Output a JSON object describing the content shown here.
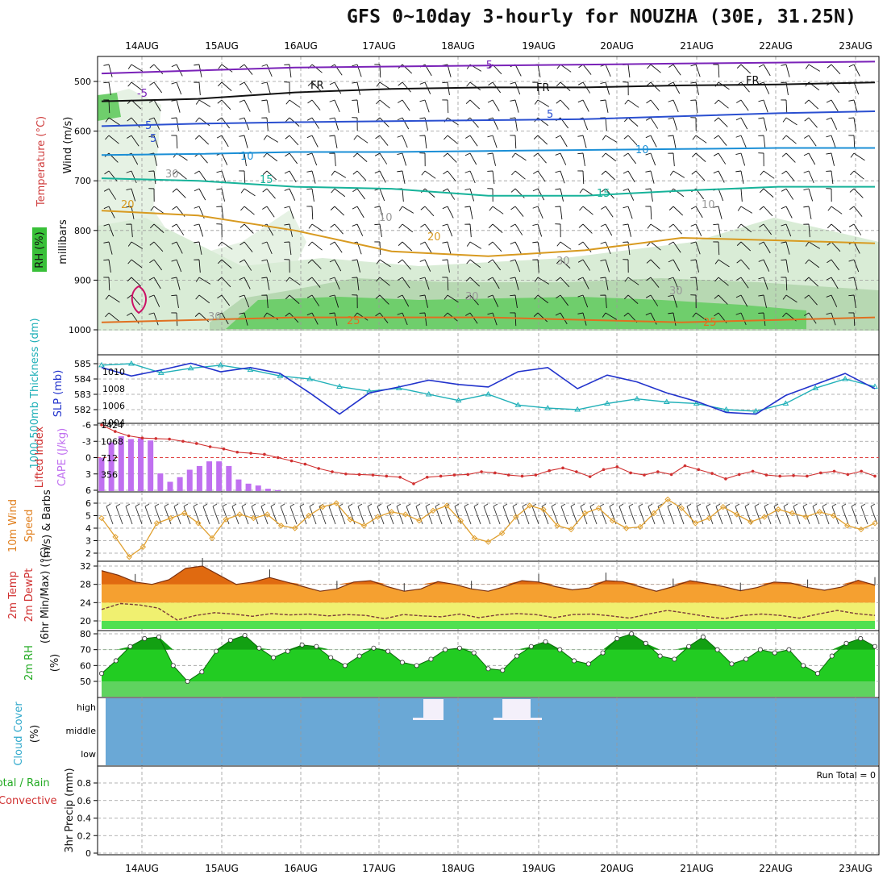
{
  "header": {
    "title": "GFS 0~10day 3-hourly for NOUZHA (30E, 31.25N)"
  },
  "dates": [
    "14AUG",
    "15AUG",
    "16AUG",
    "17AUG",
    "18AUG",
    "19AUG",
    "20AUG",
    "21AUG",
    "22AUG",
    "23AUG"
  ],
  "chart_data": [
    {
      "type": "line",
      "panel": "upper-air",
      "ylabel": "millibars",
      "labels_left": [
        "Wind (m/s)",
        "Temperature (°C)",
        "RH (%)"
      ],
      "y_ticks": [
        500,
        600,
        700,
        800,
        900,
        1000
      ],
      "ylim": [
        1000,
        450
      ],
      "temperature_contours": [
        {
          "name": "-5",
          "color": "#7a22b8",
          "pressure": [
            484,
            478,
            472,
            470,
            468,
            466,
            464,
            462,
            460
          ]
        },
        {
          "name": "FR",
          "color": "#111111",
          "pressure": [
            540,
            535,
            522,
            515,
            512,
            512,
            508,
            506,
            502
          ]
        },
        {
          "name": "5",
          "color": "#2a4fd0",
          "pressure": [
            590,
            585,
            582,
            580,
            578,
            576,
            570,
            564,
            560
          ]
        },
        {
          "name": "10",
          "color": "#1b8fd6",
          "pressure": [
            648,
            646,
            642,
            642,
            640,
            638,
            636,
            634,
            634
          ]
        },
        {
          "name": "15",
          "color": "#17b39a",
          "pressure": [
            695,
            700,
            712,
            716,
            730,
            730,
            720,
            712,
            712
          ]
        },
        {
          "name": "20",
          "color": "#d89a20",
          "pressure": [
            760,
            770,
            800,
            842,
            852,
            840,
            815,
            820,
            826
          ]
        },
        {
          "name": "25",
          "color": "#e07020",
          "pressure": [
            985,
            980,
            975,
            975,
            975,
            980,
            985,
            980,
            975
          ]
        }
      ],
      "contour_labels": [
        "5",
        "-5",
        "FR",
        "FR",
        "FR",
        "-5",
        "5",
        "5",
        "10",
        "10",
        "15",
        "15",
        "20",
        "20",
        "25",
        "25",
        "10",
        "30",
        "30",
        "30",
        "30",
        "10",
        "30"
      ]
    },
    {
      "type": "line",
      "panel": "thickness-slp",
      "labels_left": [
        "1000-500mb Thickness (dm)",
        "SLP (mb)"
      ],
      "left_ticks": [
        582,
        583,
        584,
        585
      ],
      "right_ticks": [
        1004,
        1006,
        1008,
        1010
      ],
      "series": [
        {
          "name": "1000-500mb Thickness (dm)",
          "color": "#20b0b8",
          "values": [
            584.9,
            585.0,
            584.4,
            584.7,
            584.9,
            584.6,
            584.2,
            584.0,
            583.5,
            583.2,
            583.4,
            583.0,
            582.6,
            583.0,
            582.3,
            582.1,
            582.0,
            582.4,
            582.7,
            582.5,
            582.4,
            582.0,
            581.9,
            582.4,
            583.4,
            584.0,
            583.5
          ]
        },
        {
          "name": "SLP (mb)",
          "color": "#2233cc",
          "values": [
            1010.5,
            1009.5,
            1010.2,
            1011.0,
            1010.0,
            1010.5,
            1009.8,
            1007.5,
            1005.0,
            1007.5,
            1008.2,
            1009.0,
            1008.5,
            1008.2,
            1010.0,
            1010.5,
            1008.0,
            1009.6,
            1008.8,
            1007.5,
            1006.5,
            1005.2,
            1005.0,
            1007.2,
            1008.5,
            1009.8,
            1008.0
          ]
        }
      ]
    },
    {
      "type": "bar",
      "panel": "stability",
      "labels_left": [
        "Lifted Index",
        "CAPE (J/kg)"
      ],
      "left_ticks": [
        -6,
        -3,
        0,
        3,
        6
      ],
      "right_ticks": [
        356,
        712,
        1068,
        1424
      ],
      "cape_values": [
        720,
        1050,
        1180,
        1120,
        1140,
        1090,
        380,
        200,
        300,
        460,
        540,
        640,
        640,
        540,
        250,
        160,
        120,
        50,
        20,
        0,
        0,
        0,
        0,
        0,
        0,
        0,
        0,
        0,
        0,
        0,
        0,
        0,
        0,
        0,
        0,
        0,
        0,
        0,
        0,
        0,
        0,
        0,
        0,
        0,
        0,
        0,
        0,
        0,
        0,
        0,
        0,
        0,
        0,
        0,
        0,
        0,
        0,
        0,
        0,
        0,
        0,
        0,
        0,
        0,
        0,
        0,
        0,
        0,
        0,
        0,
        0,
        0,
        0,
        0,
        0,
        0,
        0,
        0,
        0,
        0,
        0,
        0,
        0
      ],
      "lifted_index_values": [
        -6,
        -4.8,
        -4,
        -3.6,
        -3.5,
        -3.4,
        -3,
        -2.6,
        -2,
        -1.6,
        -1,
        -0.8,
        -0.6,
        0,
        0.6,
        1.2,
        2,
        2.6,
        3,
        3.1,
        3.2,
        3.4,
        3.6,
        4.8,
        3.6,
        3.4,
        3.2,
        3.1,
        2.6,
        2.8,
        3.2,
        3.4,
        3.2,
        2.4,
        1.9,
        2.6,
        3.5,
        2.2,
        1.7,
        2.8,
        3.2,
        2.6,
        3.1,
        1.5,
        2.2,
        2.9,
        3.9,
        3.1,
        2.5,
        3.2,
        3.4,
        3.3,
        3.4,
        2.8,
        2.5,
        3.1,
        2.5,
        3.4
      ]
    },
    {
      "type": "line",
      "panel": "10m-wind",
      "labels_left": [
        "10m Wind Speed (m/s) & Barbs"
      ],
      "y_ticks": [
        2,
        3,
        4,
        5,
        6
      ],
      "values": [
        4.8,
        3.3,
        1.7,
        2.5,
        4.4,
        4.8,
        5.2,
        4.4,
        3.2,
        4.7,
        5.1,
        4.8,
        5.1,
        4.2,
        4.0,
        5.0,
        5.7,
        6.0,
        4.7,
        4.2,
        4.9,
        5.3,
        5.1,
        4.6,
        5.4,
        5.8,
        4.6,
        3.2,
        2.9,
        3.6,
        4.9,
        5.8,
        5.5,
        4.2,
        3.9,
        5.2,
        5.6,
        4.6,
        4.0,
        4.1,
        5.2,
        6.3,
        5.6,
        4.4,
        4.8,
        5.7,
        5.1,
        4.5,
        4.9,
        5.5,
        5.2,
        4.9,
        5.3,
        5.0,
        4.2,
        3.9,
        4.4
      ]
    },
    {
      "type": "area",
      "panel": "2m-temp",
      "labels_left": [
        "2m Temp",
        "2m DewPt",
        "(6hr Min/Max) (°C)"
      ],
      "y_ticks": [
        20,
        24,
        28,
        32
      ],
      "temp_values": [
        31,
        30,
        28.5,
        28,
        29,
        31.5,
        32,
        30,
        28,
        28.5,
        29.5,
        28.5,
        27.5,
        26.5,
        27,
        28.5,
        28.8,
        27.5,
        26.5,
        27,
        28.6,
        28,
        27,
        26.5,
        27.5,
        28.8,
        28.5,
        27.5,
        26.8,
        27.2,
        28.8,
        28.6,
        27.5,
        26.5,
        27.5,
        28.8,
        28.2,
        27.5,
        26.6,
        27.3,
        28.5,
        28.3,
        27.3,
        26.7,
        27.4,
        28.9,
        27.8
      ],
      "dewpoint_values": [
        22.5,
        23.8,
        23.5,
        22.8,
        20.2,
        21.2,
        21.8,
        21.5,
        21,
        21.6,
        21.3,
        21.5,
        21.1,
        21.4,
        21.2,
        20.5,
        21.4,
        21.1,
        20.9,
        21.5,
        20.7,
        21.3,
        21.6,
        21.4,
        20.7,
        21.4,
        21.5,
        21.1,
        20.6,
        21.5,
        22.3,
        21.7,
        21,
        20.5,
        21.2,
        21.5,
        21.2,
        20.6,
        21.5,
        22.3,
        21.6,
        21.2
      ]
    },
    {
      "type": "area",
      "panel": "2m-rh",
      "labels_left": [
        "2m RH (%)"
      ],
      "y_ticks": [
        50,
        60,
        70,
        80
      ],
      "values": [
        55,
        63,
        72,
        77,
        78,
        60,
        50,
        56,
        69,
        76,
        79,
        71,
        65,
        69,
        73,
        72,
        65,
        60,
        66,
        71,
        69,
        62,
        60,
        64,
        70,
        71,
        68,
        58,
        57,
        66,
        72,
        75,
        70,
        63,
        61,
        68,
        77,
        80,
        74,
        66,
        64,
        72,
        78,
        70,
        61,
        64,
        70,
        68,
        70,
        60,
        55,
        66,
        74,
        77,
        72
      ]
    },
    {
      "type": "bar",
      "panel": "cloud-cover",
      "labels_left": [
        "Cloud Cover (%)"
      ],
      "levels": [
        "high",
        "middle",
        "low"
      ],
      "high_cloud_events": [
        {
          "date": "17AUG",
          "level": "high"
        },
        {
          "date": "18AUG",
          "level": "high"
        }
      ]
    },
    {
      "type": "line",
      "panel": "precip",
      "labels_left": [
        "Total / Rain",
        "Convective",
        "3hr Precip (mm)"
      ],
      "y_ticks": [
        0,
        0.2,
        0.4,
        0.6,
        0.8
      ],
      "run_total": "Run Total = 0",
      "values": []
    }
  ]
}
